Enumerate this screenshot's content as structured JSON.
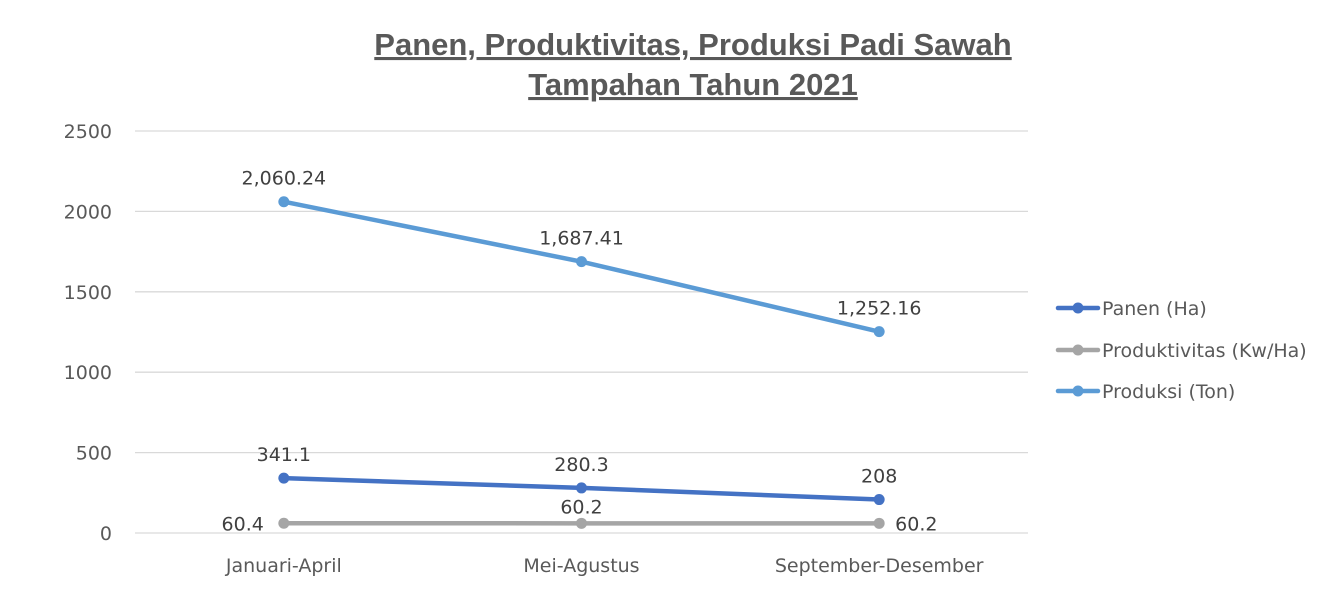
{
  "chart_data": {
    "type": "line",
    "title_line1": "Panen, Produktivitas, Produksi Padi Sawah",
    "title_line2": "Tampahan Tahun 2021",
    "categories": [
      "Januari-April",
      "Mei-Agustus",
      "September-Desember"
    ],
    "ylim": [
      0,
      2500
    ],
    "yticks": [
      "0",
      "500",
      "1000",
      "1500",
      "2000",
      "2500"
    ],
    "grid": true,
    "legend_position": "right",
    "series": [
      {
        "name": "Panen (Ha)",
        "values": [
          341.1,
          280.3,
          208
        ],
        "labels": [
          "341.1",
          "280.3",
          "208"
        ],
        "color": "#4472c4"
      },
      {
        "name": "Produktivitas (Kw/Ha)",
        "values": [
          60.4,
          60.2,
          60.2
        ],
        "labels": [
          "60.4",
          "60.2",
          "60.2"
        ],
        "color": "#a5a5a5"
      },
      {
        "name": "Produksi (Ton)",
        "values": [
          2060.24,
          1687.41,
          1252.16
        ],
        "labels": [
          "2,060.24",
          "1,687.41",
          "1,252.16"
        ],
        "color": "#5b9bd5"
      }
    ]
  }
}
